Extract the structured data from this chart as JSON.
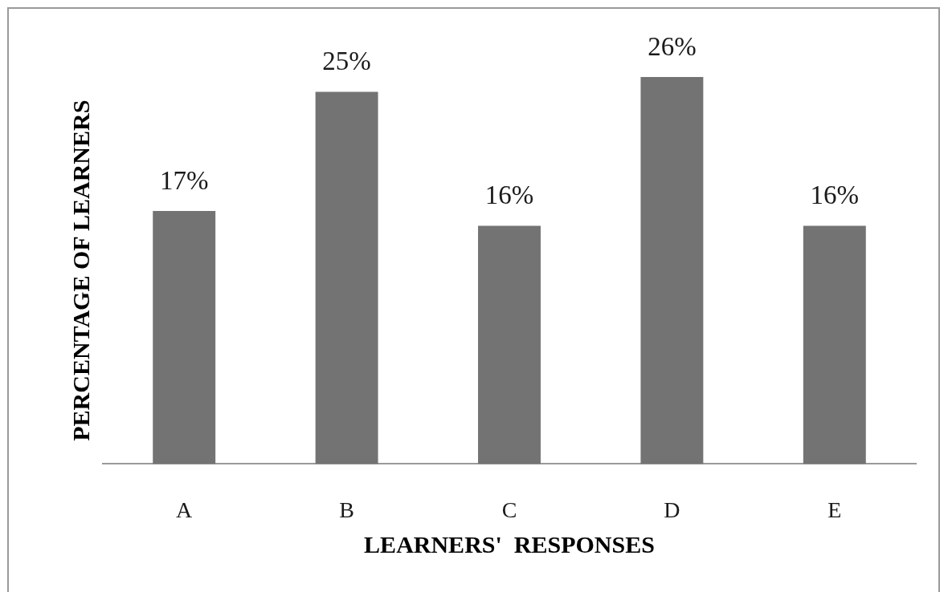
{
  "chart_data": {
    "type": "bar",
    "xlabel": "LEARNERS'  RESPONSES",
    "ylabel": "PERCENTAGE OF LEARNERS",
    "categories": [
      "A",
      "B",
      "C",
      "D",
      "E"
    ],
    "values": [
      17,
      25,
      16,
      26,
      16
    ],
    "value_labels": [
      "17%",
      "25%",
      "16%",
      "26%",
      "16%"
    ],
    "color": "#737373",
    "grid": false
  }
}
